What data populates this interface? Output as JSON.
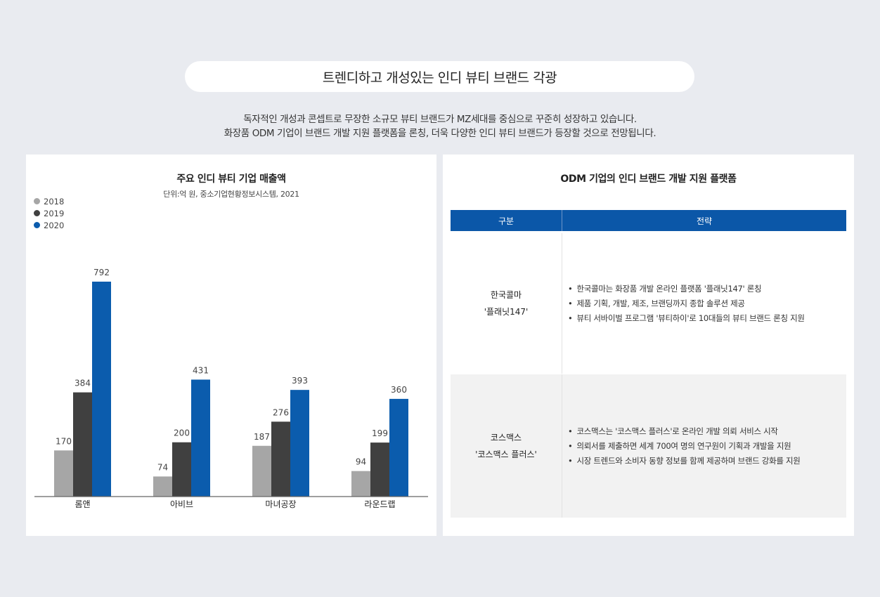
{
  "header": {
    "title": "트렌디하고 개성있는 인디 뷰티 브랜드 각광",
    "subtitle_line1": "독자적인 개성과 콘셉트로 무장한 소규모 뷰티 브랜드가 MZ세대를 중심으로 꾸준히 성장하고 있습니다.",
    "subtitle_line2": "화장품 ODM 기업이 브랜드 개발 지원 플랫폼을 론칭, 더욱 다양한 인디 뷰티 브랜드가 등장할 것으로 전망됩니다."
  },
  "chart_data": {
    "type": "bar",
    "title": "주요 인디 뷰티 기업 매출액",
    "note": "단위:억 원, 중소기업현황정보시스템, 2021",
    "categories": [
      "롬앤",
      "아비브",
      "마녀공장",
      "라운드랩"
    ],
    "series": [
      {
        "name": "2018",
        "color": "#a6a6a6",
        "values": [
          170,
          74,
          187,
          94
        ]
      },
      {
        "name": "2019",
        "color": "#404040",
        "values": [
          384,
          200,
          276,
          199
        ]
      },
      {
        "name": "2020",
        "color": "#0b5cad",
        "values": [
          792,
          431,
          393,
          360
        ]
      }
    ],
    "ylim": [
      0,
      792
    ],
    "legend_position": "top-left",
    "grid": false
  },
  "table": {
    "title": "ODM 기업의 인디 브랜드 개발 지원 플랫폼",
    "header_col1": "구분",
    "header_col2": "전략",
    "rows": [
      {
        "name_line1": "한국콜마",
        "name_line2": "'플래닛147'",
        "bullets": [
          "한국콜마는 화장품 개발 온라인 플랫폼 '플래닛147' 론칭",
          "제품 기획, 개발, 제조, 브랜딩까지 종합 솔루션 제공",
          "뷰티 서바이벌 프로그램 '뷰티하이'로 10대들의 뷰티 브랜드 론칭 지원"
        ]
      },
      {
        "name_line1": "코스맥스",
        "name_line2": "'코스맥스 플러스'",
        "bullets": [
          "코스맥스는 '코스맥스 플러스'로 온라인 개발 의뢰 서비스 시작",
          "의뢰서를 제출하면 세계 700여 명의 연구원이 기획과 개발을 지원",
          "시장 트렌드와 소비자 동향 정보를 함께 제공하며 브랜드 강화를 지원"
        ]
      }
    ]
  }
}
